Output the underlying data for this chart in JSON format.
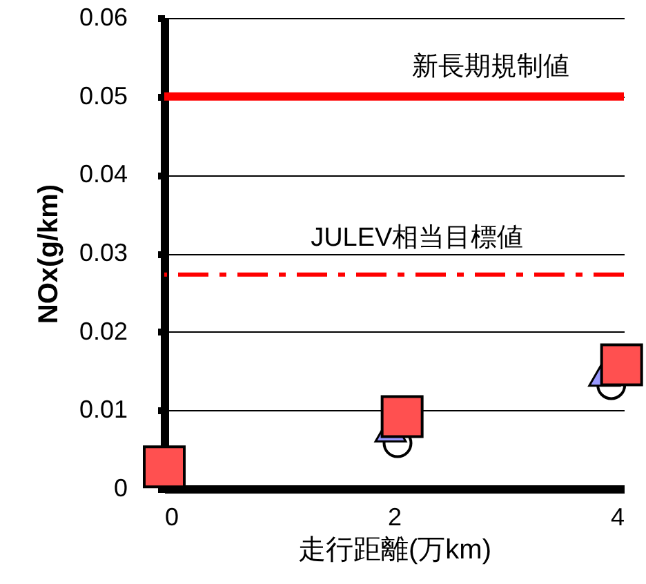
{
  "chart_data": {
    "type": "scatter",
    "xlabel": "走行距離(万km)",
    "ylabel": "NOx(g/km)",
    "series": [
      {
        "color": "#000000",
        "marker": "circle",
        "x": [
          2.03,
          3.89
        ],
        "values": [
          0.0058,
          0.0132
        ]
      },
      {
        "color": "#9999ff",
        "marker": "triangle",
        "x": [
          1.97,
          3.83
        ],
        "values": [
          0.0077,
          0.0148
        ]
      },
      {
        "color": "#ff5050",
        "marker": "square",
        "x": [
          0,
          2.07,
          3.98
        ],
        "values": [
          0.0028,
          0.0092,
          0.0158
        ]
      }
    ],
    "xlim": [
      0,
      4
    ],
    "xticks": [
      0,
      2,
      4
    ],
    "ylim": [
      0,
      0.06
    ],
    "yticks": [
      0,
      0.01,
      0.02,
      0.03,
      0.04,
      0.05,
      0.06
    ],
    "grid": "y",
    "ref_lines": [
      {
        "axis": "y",
        "value": 0.05,
        "label": "新長期規制値",
        "color": "#ff0000",
        "line_style": "solid"
      },
      {
        "axis": "y",
        "value": 0.0273,
        "label": "JULEV相当目標値",
        "color": "#ff0000",
        "line_style": "dashed"
      }
    ]
  }
}
